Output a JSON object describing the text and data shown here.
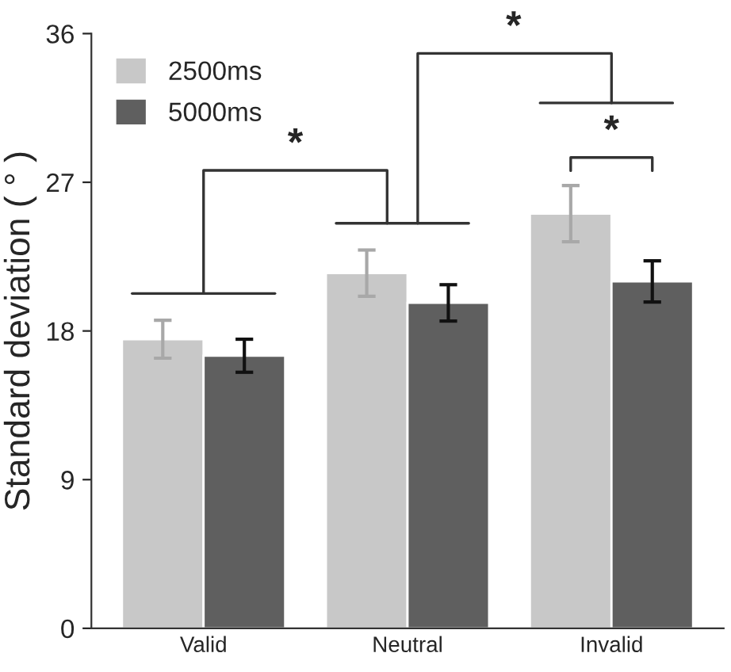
{
  "chart_data": {
    "type": "bar",
    "ylabel": "Standard deviation ( ° )",
    "categories": [
      "Valid",
      "Neutral",
      "Invalid"
    ],
    "series": [
      {
        "name": "2500ms",
        "color": "#c8c8c8",
        "values": [
          17.5,
          21.5,
          25.1
        ],
        "errors": [
          1.15,
          1.4,
          1.7
        ]
      },
      {
        "name": "5000ms",
        "color": "#5f5f5f",
        "values": [
          16.5,
          19.7,
          21.0
        ],
        "errors": [
          1.0,
          1.1,
          1.25
        ]
      }
    ],
    "ylim": [
      0,
      36
    ],
    "yticks": [
      0,
      9,
      18,
      27,
      36
    ],
    "grid": false,
    "legend": "top left",
    "annotations": [
      "*",
      "*",
      "*"
    ]
  }
}
